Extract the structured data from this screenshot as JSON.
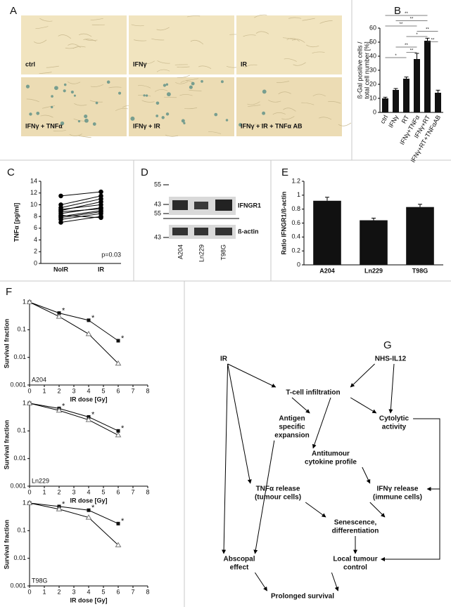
{
  "panel_labels": [
    "A",
    "B",
    "C",
    "D",
    "E",
    "F",
    "G"
  ],
  "panel_a": {
    "images": [
      "ctrl",
      "IFNγ",
      "IR",
      "IFNγ + TNFα",
      "IFNγ + IR",
      "IFNγ + IR + TNFα AB"
    ]
  },
  "panel_d": {
    "markers": [
      "55",
      "43",
      "55",
      "43"
    ],
    "bands": [
      "IFNGR1",
      "ß-actin"
    ],
    "lanes": [
      "A204",
      "Ln229",
      "T98G"
    ]
  },
  "chart_data": [
    {
      "type": "bar",
      "y_label": [
        "ß-Gal positive cells /",
        "total cell number [%]"
      ],
      "categories": [
        "ctrl",
        "IFNγ",
        "RT",
        "IFNγ+TNFα",
        "IFNγ+RT",
        "IFNγ+RT+TNFαAB"
      ],
      "values": [
        10,
        16,
        24,
        38,
        51,
        14
      ],
      "errors": [
        0.8,
        1,
        1.2,
        4,
        1.8,
        1.8
      ],
      "color": "#111111",
      "ylim": [
        0,
        60
      ],
      "yticks": [
        0,
        10,
        20,
        30,
        40,
        50,
        60
      ],
      "brackets": [
        {
          "between": [
            0,
            4
          ],
          "label": "**"
        },
        {
          "between": [
            1,
            4
          ],
          "label": "**"
        },
        {
          "between": [
            0,
            3
          ],
          "label": "**"
        },
        {
          "between": [
            3,
            5
          ],
          "label": "**"
        },
        {
          "between": [
            2,
            4
          ],
          "label": "*"
        },
        {
          "between": [
            4,
            5
          ],
          "label": "**"
        },
        {
          "between": [
            1,
            3
          ],
          "label": "**"
        },
        {
          "between": [
            2,
            3
          ],
          "label": "**"
        },
        {
          "between": [
            0,
            2
          ],
          "label": "*"
        }
      ]
    },
    {
      "type": "paired-line",
      "y_label": "TNFα [pg/ml]",
      "categories": [
        "NoIR",
        "IR"
      ],
      "color": "#000000",
      "series": [
        {
          "values": [
            11.5,
            12.2
          ]
        },
        {
          "values": [
            10,
            11.5
          ]
        },
        {
          "values": [
            9.5,
            11
          ]
        },
        {
          "values": [
            9,
            10.5
          ]
        },
        {
          "values": [
            9.2,
            10
          ]
        },
        {
          "values": [
            8.8,
            9.3
          ]
        },
        {
          "values": [
            8.5,
            9.5
          ]
        },
        {
          "values": [
            8,
            9
          ]
        },
        {
          "values": [
            7.8,
            8.8
          ]
        },
        {
          "values": [
            7.5,
            8.5
          ]
        },
        {
          "values": [
            7,
            8
          ]
        },
        {
          "values": [
            8.2,
            7.8
          ]
        }
      ],
      "ylim": [
        0,
        14
      ],
      "yticks": [
        0,
        2,
        4,
        6,
        8,
        10,
        12,
        14
      ],
      "annotation": "p=0.03"
    },
    {
      "type": "bar",
      "y_label": "Ratio IFNGR1/ß-actin",
      "categories": [
        "A204",
        "Ln229",
        "T98G"
      ],
      "values": [
        0.92,
        0.64,
        0.83
      ],
      "errors": [
        0.05,
        0.03,
        0.04
      ],
      "color": "#111111",
      "ylim": [
        0,
        1.2
      ],
      "yticks": [
        0,
        0.2,
        0.4,
        0.6,
        0.8,
        1,
        1.2
      ]
    },
    {
      "type": "line",
      "log_y": true,
      "x_label": "IR dose [Gy]",
      "y_label": "Survival fraction",
      "label": "A204",
      "x": [
        0,
        2,
        4,
        6
      ],
      "series": [
        {
          "color": "#111111",
          "marker": "square",
          "values": [
            1,
            0.4,
            0.22,
            0.04
          ],
          "annotations": [
            null,
            "*",
            "*",
            "*"
          ]
        },
        {
          "color": "#777777",
          "marker": "triangle",
          "values": [
            1,
            0.3,
            0.07,
            0.006
          ]
        }
      ],
      "xlim": [
        0,
        8
      ],
      "xticks": [
        0,
        1,
        2,
        3,
        4,
        5,
        6,
        7,
        8
      ],
      "ylim": [
        0.001,
        1
      ],
      "yticks": [
        0.001,
        0.01,
        0.1,
        1
      ]
    },
    {
      "type": "line",
      "log_y": true,
      "x_label": "IR dose [Gy]",
      "y_label": "Survival fraction",
      "label": "Ln229",
      "x": [
        0,
        2,
        4,
        6
      ],
      "series": [
        {
          "color": "#111111",
          "marker": "square",
          "values": [
            1,
            0.65,
            0.32,
            0.1
          ],
          "annotations": [
            null,
            "*",
            "*",
            "*"
          ]
        },
        {
          "color": "#777777",
          "marker": "triangle",
          "values": [
            1,
            0.55,
            0.25,
            0.07
          ]
        }
      ],
      "xlim": [
        0,
        8
      ],
      "xticks": [
        0,
        1,
        2,
        3,
        4,
        5,
        6,
        7,
        8
      ],
      "ylim": [
        0.001,
        1
      ],
      "yticks": [
        0.001,
        0.01,
        0.1,
        1
      ]
    },
    {
      "type": "line",
      "log_y": true,
      "x_label": "IR dose [Gy]",
      "y_label": "Survival fraction",
      "label": "T98G",
      "x": [
        0,
        2,
        4,
        6
      ],
      "series": [
        {
          "color": "#111111",
          "marker": "square",
          "values": [
            1,
            0.75,
            0.55,
            0.18
          ],
          "annotations": [
            null,
            "*",
            "*",
            "*"
          ]
        },
        {
          "color": "#777777",
          "marker": "triangle",
          "values": [
            1,
            0.6,
            0.3,
            0.03
          ]
        }
      ],
      "xlim": [
        0,
        8
      ],
      "xticks": [
        0,
        1,
        2,
        3,
        4,
        5,
        6,
        7,
        8
      ],
      "ylim": [
        0.001,
        1
      ],
      "yticks": [
        0.001,
        0.01,
        0.1,
        1
      ]
    }
  ],
  "panel_g": {
    "nodes": [
      [
        "IR"
      ],
      [
        "NHS-IL12"
      ],
      [
        "T-cell infiltration"
      ],
      [
        "Antigen",
        "specific",
        "expansion"
      ],
      [
        "Cytolytic",
        "activity"
      ],
      [
        "Antitumour",
        "cytokine profile"
      ],
      [
        "TNFα release",
        "(tumour cells)"
      ],
      [
        "IFNγ release",
        "(immune cells)"
      ],
      [
        "Senescence,",
        "differentiation"
      ],
      [
        "Abscopal",
        "effect"
      ],
      [
        "Local tumour",
        "control"
      ],
      [
        "Prolonged survival"
      ]
    ],
    "edges": [
      [
        0,
        2
      ],
      [
        1,
        2
      ],
      [
        1,
        4
      ],
      [
        2,
        3
      ],
      [
        2,
        5
      ],
      [
        2,
        4
      ],
      [
        0,
        6
      ],
      [
        0,
        9
      ],
      [
        3,
        9
      ],
      [
        4,
        7
      ],
      [
        5,
        7
      ],
      [
        6,
        8
      ],
      [
        7,
        8
      ],
      [
        8,
        10
      ],
      [
        4,
        10
      ],
      [
        9,
        11
      ],
      [
        10,
        11
      ]
    ]
  }
}
